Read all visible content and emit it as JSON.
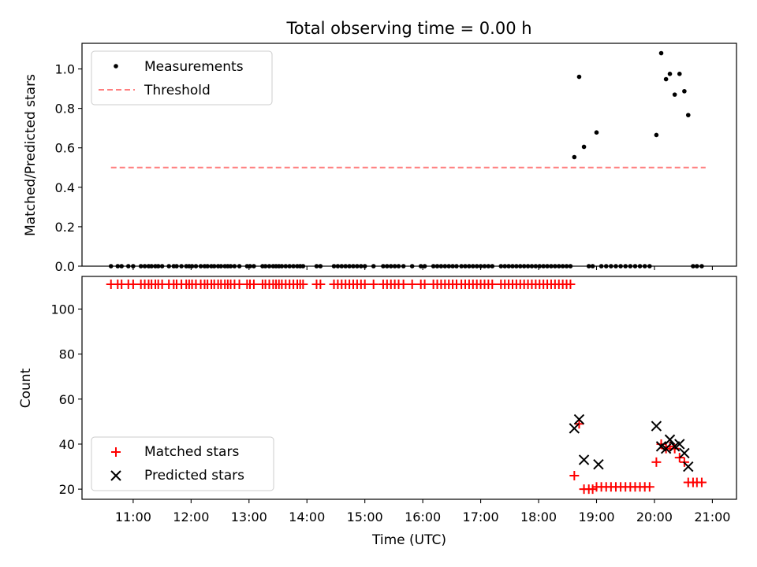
{
  "title": "Total observing time = 0.00 h",
  "colors": {
    "matched": "#ff0000",
    "predicted": "#000000",
    "threshold": "#ff7f7f",
    "measurement": "#000000"
  },
  "chart_data": [
    {
      "type": "scatter",
      "panel": "top",
      "ylabel": "Matched/Predicted stars",
      "ylim": [
        0,
        1.13
      ],
      "yticks": [
        0.0,
        0.2,
        0.4,
        0.6,
        0.8,
        1.0
      ],
      "ytick_labels": [
        "0.0",
        "0.2",
        "0.4",
        "0.6",
        "0.8",
        "1.0"
      ],
      "xlim": [
        "10:07",
        "21:25"
      ],
      "legend": {
        "position": "upper left",
        "entries": [
          "Measurements",
          "Threshold"
        ]
      },
      "threshold": {
        "name": "Threshold",
        "value": 0.5,
        "x": [
          "10:37",
          "20:53"
        ]
      },
      "series": [
        {
          "name": "Measurements",
          "x": [
            "10:37",
            "10:44",
            "10:48",
            "10:55",
            "11:00",
            "11:08",
            "11:12",
            "11:16",
            "11:19",
            "11:23",
            "11:26",
            "11:30",
            "11:37",
            "11:42",
            "11:45",
            "11:50",
            "11:55",
            "11:58",
            "12:01",
            "12:05",
            "12:10",
            "12:14",
            "12:17",
            "12:21",
            "12:24",
            "12:28",
            "12:31",
            "12:35",
            "12:38",
            "12:41",
            "12:45",
            "12:50",
            "12:58",
            "13:01",
            "13:05",
            "13:14",
            "13:17",
            "13:21",
            "13:25",
            "13:28",
            "13:31",
            "13:34",
            "13:38",
            "13:42",
            "13:46",
            "13:50",
            "13:53",
            "13:56",
            "14:10",
            "14:14",
            "14:28",
            "14:32",
            "14:36",
            "14:40",
            "14:44",
            "14:48",
            "14:52",
            "14:56",
            "15:00",
            "15:09",
            "15:19",
            "15:23",
            "15:27",
            "15:31",
            "15:35",
            "15:40",
            "15:49",
            "15:58",
            "16:02",
            "16:11",
            "16:15",
            "16:19",
            "16:23",
            "16:27",
            "16:31",
            "16:35",
            "16:40",
            "16:44",
            "16:48",
            "16:52",
            "16:56",
            "17:00",
            "17:04",
            "17:08",
            "17:12",
            "17:21",
            "17:25",
            "17:29",
            "17:33",
            "17:37",
            "17:41",
            "17:45",
            "17:49",
            "17:53",
            "17:57",
            "18:01",
            "18:05",
            "18:09",
            "18:13",
            "18:17",
            "18:21",
            "18:25",
            "18:29",
            "18:33",
            "18:37",
            "18:42",
            "18:47",
            "18:52",
            "18:56",
            "19:00",
            "19:05",
            "19:10",
            "19:15",
            "19:20",
            "19:25",
            "19:30",
            "19:35",
            "19:40",
            "19:45",
            "19:50",
            "19:55",
            "20:02",
            "20:07",
            "20:12",
            "20:16",
            "20:21",
            "20:26",
            "20:31",
            "20:35",
            "20:40",
            "20:44",
            "20:49"
          ],
          "y": [
            0,
            0,
            0,
            0,
            0,
            0,
            0,
            0,
            0,
            0,
            0,
            0,
            0,
            0,
            0,
            0,
            0,
            0,
            0,
            0,
            0,
            0,
            0,
            0,
            0,
            0,
            0,
            0,
            0,
            0,
            0,
            0,
            0,
            0,
            0,
            0,
            0,
            0,
            0,
            0,
            0,
            0,
            0,
            0,
            0,
            0,
            0,
            0,
            0,
            0,
            0,
            0,
            0,
            0,
            0,
            0,
            0,
            0,
            0,
            0,
            0,
            0,
            0,
            0,
            0,
            0,
            0,
            0,
            0,
            0,
            0,
            0,
            0,
            0,
            0,
            0,
            0,
            0,
            0,
            0,
            0,
            0,
            0,
            0,
            0,
            0,
            0,
            0,
            0,
            0,
            0,
            0,
            0,
            0,
            0,
            0,
            0,
            0,
            0,
            0,
            0,
            0,
            0,
            0,
            0.553,
            0.96,
            0.605,
            0,
            0,
            0.678,
            0,
            0,
            0,
            0,
            0,
            0,
            0,
            0,
            0,
            0,
            0,
            0.665,
            1.08,
            0.948,
            0.975,
            0.87,
            0.975,
            0.887,
            0.766,
            0,
            0,
            0
          ]
        }
      ]
    },
    {
      "type": "scatter",
      "panel": "bottom",
      "ylabel": "Count",
      "xlabel": "Time (UTC)",
      "ylim": [
        15.5,
        114.5
      ],
      "yticks": [
        20,
        40,
        60,
        80,
        100
      ],
      "ytick_labels": [
        "20",
        "40",
        "60",
        "80",
        "100"
      ],
      "xlim": [
        "10:07",
        "21:25"
      ],
      "xticks": [
        "11:00",
        "12:00",
        "13:00",
        "14:00",
        "15:00",
        "16:00",
        "17:00",
        "18:00",
        "19:00",
        "20:00",
        "21:00"
      ],
      "xtick_labels": [
        "11:00",
        "12:00",
        "13:00",
        "14:00",
        "15:00",
        "16:00",
        "17:00",
        "18:00",
        "19:00",
        "20:00",
        "21:00"
      ],
      "legend": {
        "position": "lower left",
        "entries": [
          "Matched stars",
          "Predicted stars"
        ]
      },
      "series": [
        {
          "name": "Matched stars",
          "marker": "+",
          "x": [
            "10:37",
            "10:44",
            "10:48",
            "10:55",
            "11:00",
            "11:08",
            "11:12",
            "11:16",
            "11:19",
            "11:23",
            "11:26",
            "11:30",
            "11:37",
            "11:42",
            "11:45",
            "11:50",
            "11:55",
            "11:58",
            "12:01",
            "12:05",
            "12:10",
            "12:14",
            "12:17",
            "12:21",
            "12:24",
            "12:28",
            "12:31",
            "12:35",
            "12:38",
            "12:41",
            "12:45",
            "12:50",
            "12:58",
            "13:01",
            "13:05",
            "13:14",
            "13:17",
            "13:21",
            "13:25",
            "13:28",
            "13:31",
            "13:34",
            "13:38",
            "13:42",
            "13:46",
            "13:50",
            "13:53",
            "13:56",
            "14:10",
            "14:14",
            "14:28",
            "14:32",
            "14:36",
            "14:40",
            "14:44",
            "14:48",
            "14:52",
            "14:56",
            "15:00",
            "15:09",
            "15:19",
            "15:23",
            "15:27",
            "15:31",
            "15:35",
            "15:40",
            "15:49",
            "15:58",
            "16:02",
            "16:11",
            "16:15",
            "16:19",
            "16:23",
            "16:27",
            "16:31",
            "16:35",
            "16:40",
            "16:44",
            "16:48",
            "16:52",
            "16:56",
            "17:00",
            "17:04",
            "17:08",
            "17:12",
            "17:21",
            "17:25",
            "17:29",
            "17:33",
            "17:37",
            "17:41",
            "17:45",
            "17:49",
            "17:53",
            "17:57",
            "18:01",
            "18:05",
            "18:09",
            "18:13",
            "18:17",
            "18:21",
            "18:25",
            "18:29",
            "18:33",
            "18:37",
            "18:42",
            "18:47",
            "18:52",
            "18:56",
            "19:00",
            "19:05",
            "19:10",
            "19:15",
            "19:20",
            "19:25",
            "19:30",
            "19:35",
            "19:40",
            "19:45",
            "19:50",
            "19:55",
            "20:02",
            "20:07",
            "20:12",
            "20:16",
            "20:21",
            "20:26",
            "20:31",
            "20:35",
            "20:40",
            "20:44",
            "20:49"
          ],
          "y": [
            111,
            111,
            111,
            111,
            111,
            111,
            111,
            111,
            111,
            111,
            111,
            111,
            111,
            111,
            111,
            111,
            111,
            111,
            111,
            111,
            111,
            111,
            111,
            111,
            111,
            111,
            111,
            111,
            111,
            111,
            111,
            111,
            111,
            111,
            111,
            111,
            111,
            111,
            111,
            111,
            111,
            111,
            111,
            111,
            111,
            111,
            111,
            111,
            111,
            111,
            111,
            111,
            111,
            111,
            111,
            111,
            111,
            111,
            111,
            111,
            111,
            111,
            111,
            111,
            111,
            111,
            111,
            111,
            111,
            111,
            111,
            111,
            111,
            111,
            111,
            111,
            111,
            111,
            111,
            111,
            111,
            111,
            111,
            111,
            111,
            111,
            111,
            111,
            111,
            111,
            111,
            111,
            111,
            111,
            111,
            111,
            111,
            111,
            111,
            111,
            111,
            111,
            111,
            111,
            26,
            49,
            20,
            20,
            20,
            21,
            21,
            21,
            21,
            21,
            21,
            21,
            21,
            21,
            21,
            21,
            21,
            32,
            40,
            38,
            39,
            38,
            34,
            32,
            23,
            23,
            23,
            23
          ]
        },
        {
          "name": "Predicted stars",
          "marker": "x",
          "x": [
            "18:37",
            "18:42",
            "18:47",
            "19:02",
            "20:02",
            "20:07",
            "20:12",
            "20:16",
            "20:21",
            "20:26",
            "20:31",
            "20:35"
          ],
          "y": [
            47,
            51,
            33,
            31,
            48,
            39,
            38,
            42,
            39,
            40,
            36,
            30
          ]
        }
      ]
    }
  ]
}
